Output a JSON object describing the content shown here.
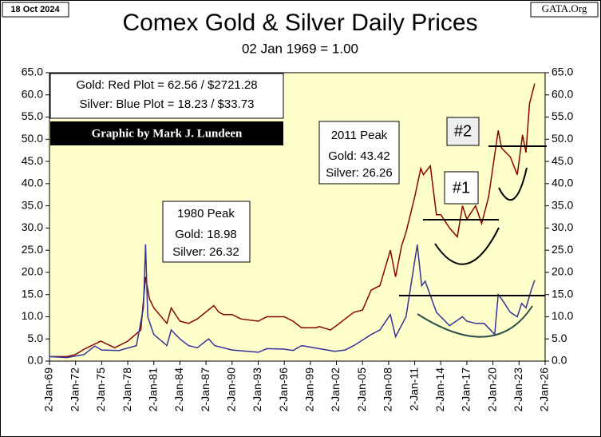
{
  "chart_data": {
    "type": "line",
    "date_label": "18 Oct 2024",
    "source": "GATA.Org",
    "title": "Comex Gold & Silver Daily Prices",
    "subtitle": "02 Jan 1969 = 1.00",
    "legend_text": [
      "Gold: Red Plot =  62.56 / $2721.28",
      "Silver: Blue Plot = 18.23 / $33.73"
    ],
    "credit": "Graphic by Mark J. Lundeen",
    "peak_1980": [
      "1980 Peak",
      "Gold:  18.98",
      "Silver: 26.32"
    ],
    "peak_2011": [
      "2011 Peak",
      "Gold:  43.42",
      "Silver: 26.26"
    ],
    "markers": [
      "#1",
      "#2"
    ],
    "xlim": [
      1969,
      2026
    ],
    "xticks": [
      {
        "value": 1969,
        "label": "2-Jan-69"
      },
      {
        "value": 1972,
        "label": "2-Jan-72"
      },
      {
        "value": 1975,
        "label": "2-Jan-75"
      },
      {
        "value": 1978,
        "label": "2-Jan-78"
      },
      {
        "value": 1981,
        "label": "2-Jan-81"
      },
      {
        "value": 1984,
        "label": "2-Jan-84"
      },
      {
        "value": 1987,
        "label": "2-Jan-87"
      },
      {
        "value": 1990,
        "label": "2-Jan-90"
      },
      {
        "value": 1993,
        "label": "2-Jan-93"
      },
      {
        "value": 1996,
        "label": "2-Jan-96"
      },
      {
        "value": 1999,
        "label": "2-Jan-99"
      },
      {
        "value": 2002,
        "label": "2-Jan-02"
      },
      {
        "value": 2005,
        "label": "2-Jan-05"
      },
      {
        "value": 2008,
        "label": "2-Jan-08"
      },
      {
        "value": 2011,
        "label": "2-Jan-11"
      },
      {
        "value": 2014,
        "label": "2-Jan-14"
      },
      {
        "value": 2017,
        "label": "2-Jan-17"
      },
      {
        "value": 2020,
        "label": "2-Jan-20"
      },
      {
        "value": 2023,
        "label": "2-Jan-23"
      },
      {
        "value": 2026,
        "label": "2-Jan-26"
      }
    ],
    "ylim": [
      0,
      65
    ],
    "yticks": [
      {
        "value": 0,
        "label": "0.0"
      },
      {
        "value": 5,
        "label": "5.0"
      },
      {
        "value": 10,
        "label": "10.0"
      },
      {
        "value": 15,
        "label": "15.0"
      },
      {
        "value": 20,
        "label": "20.0"
      },
      {
        "value": 25,
        "label": "25.0"
      },
      {
        "value": 30,
        "label": "30.0"
      },
      {
        "value": 35,
        "label": "35.0"
      },
      {
        "value": 40,
        "label": "40.0"
      },
      {
        "value": 45,
        "label": "45.0"
      },
      {
        "value": 50,
        "label": "50.0"
      },
      {
        "value": 55,
        "label": "55.0"
      },
      {
        "value": 60,
        "label": "60.0"
      },
      {
        "value": 65,
        "label": "65.0"
      }
    ],
    "y2lim": [
      0,
      65
    ],
    "y2ticks": [
      {
        "value": 0,
        "label": "0.0"
      },
      {
        "value": 5,
        "label": "5.0"
      },
      {
        "value": 10,
        "label": "10.0"
      },
      {
        "value": 15,
        "label": "15.0"
      },
      {
        "value": 20,
        "label": "20.0"
      },
      {
        "value": 25,
        "label": "25.0"
      },
      {
        "value": 30,
        "label": "30.0"
      },
      {
        "value": 35,
        "label": "35.0"
      },
      {
        "value": 40,
        "label": "40.0"
      },
      {
        "value": 45,
        "label": "45.0"
      },
      {
        "value": 50,
        "label": "50.0"
      },
      {
        "value": 55,
        "label": "55.0"
      },
      {
        "value": 60,
        "label": "60.0"
      },
      {
        "value": 65,
        "label": "65.0"
      }
    ],
    "series": [
      {
        "color": "#8b0000",
        "x": [
          1969,
          1971,
          1972,
          1973,
          1974.9,
          1976.5,
          1978,
          1979.5,
          1980.05,
          1980.5,
          1981,
          1982.5,
          1983,
          1984,
          1985,
          1986,
          1987.9,
          1988.5,
          1989,
          1990,
          1991,
          1993,
          1994,
          1996,
          1997,
          1998,
          1999.7,
          2000,
          2001.3,
          2002,
          2003,
          2004,
          2005,
          2006,
          2007,
          2008.2,
          2008.8,
          2009.5,
          2010,
          2011,
          2011.7,
          2012,
          2012.8,
          2013.5,
          2014,
          2015,
          2015.9,
          2016.5,
          2017,
          2018,
          2018.7,
          2019.5,
          2020.6,
          2021,
          2022,
          2022.8,
          2023.4,
          2023.8,
          2024.2,
          2024.8
        ],
        "values": [
          1,
          1.0,
          1.5,
          2.7,
          4.5,
          3.0,
          4.5,
          7,
          18.98,
          14,
          12,
          8.5,
          12,
          9,
          8.5,
          9.5,
          12.5,
          11,
          10.5,
          10.5,
          9.5,
          9,
          10,
          10,
          9,
          7.5,
          7.5,
          7.8,
          7,
          8,
          9.5,
          11,
          11.5,
          16,
          17,
          25,
          19,
          26,
          29,
          37,
          43.42,
          42,
          44,
          33,
          33,
          30,
          28,
          35,
          32,
          35,
          31,
          37,
          52,
          48,
          46,
          42,
          51,
          47,
          58,
          62.56
        ]
      },
      {
        "color": "#333399",
        "x": [
          1969,
          1971,
          1973,
          1974.2,
          1975,
          1977,
          1979,
          1979.8,
          1980.05,
          1980.3,
          1981,
          1982.5,
          1983,
          1984,
          1985,
          1986,
          1987.3,
          1988,
          1990,
          1993,
          1994,
          1996,
          1997,
          1998,
          2000,
          2001.8,
          2003,
          2004,
          2006,
          2007,
          2008.2,
          2008.8,
          2010,
          2011.3,
          2011.8,
          2012.2,
          2013.5,
          2014,
          2015,
          2016.5,
          2017,
          2018,
          2019,
          2020.2,
          2020.6,
          2021,
          2022,
          2022.8,
          2023.3,
          2023.8,
          2024.4,
          2024.8
        ],
        "values": [
          1,
          0.8,
          1.5,
          3.4,
          2.5,
          2.4,
          3.5,
          12,
          26.32,
          10,
          6,
          3.5,
          7,
          5,
          3.5,
          3,
          5,
          3.5,
          2.5,
          2,
          2.8,
          2.7,
          2.4,
          3.5,
          2.8,
          2.2,
          2.5,
          3.5,
          6,
          7,
          10.5,
          5.5,
          10,
          26.26,
          17,
          18,
          11,
          10,
          8,
          10,
          9,
          8.5,
          8.5,
          6,
          15,
          14,
          11,
          10,
          13,
          12,
          16,
          18.23
        ]
      }
    ]
  }
}
